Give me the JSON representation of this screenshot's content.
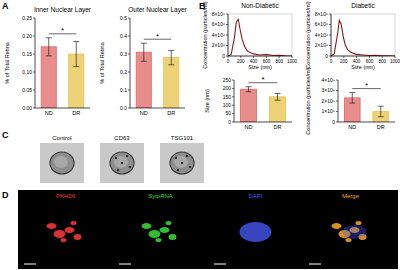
{
  "chart_data": [
    {
      "type": "bar",
      "title": "Inner Nuclear Layer",
      "y_label": "% of Total Retina",
      "categories": [
        "ND",
        "DR"
      ],
      "values": [
        0.17,
        0.15
      ],
      "errors": [
        0.025,
        0.035
      ],
      "colors": [
        "#e06666",
        "#e8c34a"
      ],
      "ylim": [
        0,
        0.25
      ],
      "yticks": [
        {
          "value": 0,
          "label": "0.00"
        },
        {
          "value": 0.05,
          "label": "0.05"
        },
        {
          "value": 0.1,
          "label": "0.10"
        },
        {
          "value": 0.15,
          "label": "0.15"
        },
        {
          "value": 0.2,
          "label": "0.20"
        },
        {
          "value": 0.25,
          "label": "0.25"
        }
      ],
      "annotation": "*"
    },
    {
      "type": "bar",
      "title": "Outer Nuclear Layer",
      "y_label": "% of Total Retina",
      "categories": [
        "ND",
        "DR"
      ],
      "values": [
        0.31,
        0.28
      ],
      "errors": [
        0.05,
        0.04
      ],
      "colors": [
        "#e06666",
        "#e8c34a"
      ],
      "ylim": [
        0,
        0.5
      ],
      "yticks": [
        {
          "value": 0,
          "label": "0.0"
        },
        0.1,
        0.2,
        0.3,
        0.4,
        0.5
      ],
      "annotation": "*"
    },
    {
      "type": "line",
      "title": "Non-Diabetic",
      "x_label": "Size (nm)",
      "y_label": "Concentration (particles/ml)",
      "x": [
        0,
        50,
        100,
        130,
        160,
        190,
        220,
        260,
        300,
        350,
        400,
        500,
        600,
        700,
        800,
        900,
        1000
      ],
      "values": [
        0,
        300000,
        3500000,
        6500000,
        7000000,
        5000000,
        3200000,
        1800000,
        1000000,
        600000,
        400000,
        200000,
        300000,
        100000,
        150000,
        50000,
        0
      ],
      "color": "#8b1a1a",
      "xlim": [
        0,
        1000
      ],
      "xticks": [
        0,
        200,
        400,
        600,
        800,
        1000
      ],
      "ylim": [
        0,
        8000000
      ],
      "yticks": [
        0,
        {
          "value": 2000000,
          "label": "2×10⁶"
        },
        {
          "value": 4000000,
          "label": "4×10⁶"
        },
        {
          "value": 6000000,
          "label": "6×10⁶"
        },
        {
          "value": 8000000,
          "label": "8×10⁶"
        }
      ]
    },
    {
      "type": "line",
      "title": "Diabetic",
      "x_label": "Size (nm)",
      "y_label": "Concentration (particles/ml)",
      "x": [
        0,
        50,
        100,
        130,
        160,
        190,
        220,
        260,
        300,
        350,
        400,
        500,
        600,
        700,
        800,
        900,
        1000
      ],
      "values": [
        0,
        400000,
        4000000,
        6800000,
        6000000,
        3800000,
        2200000,
        1200000,
        800000,
        500000,
        300000,
        200000,
        100000,
        150000,
        50000,
        50000,
        0
      ],
      "color": "#8b1a1a",
      "xlim": [
        0,
        1000
      ],
      "xticks": [
        0,
        200,
        400,
        600,
        800,
        1000
      ],
      "ylim": [
        0,
        8000000
      ],
      "yticks": [
        0,
        {
          "value": 2000000,
          "label": "2×10⁶"
        },
        {
          "value": 4000000,
          "label": "4×10⁶"
        },
        {
          "value": 6000000,
          "label": "6×10⁶"
        },
        {
          "value": 8000000,
          "label": "8×10⁶"
        }
      ]
    },
    {
      "type": "bar",
      "y_label": "Size (nm)",
      "categories": [
        "ND",
        "DR"
      ],
      "values": [
        195,
        150
      ],
      "errors": [
        15,
        20
      ],
      "colors": [
        "#e06666",
        "#e8c34a"
      ],
      "ylim": [
        0,
        250
      ],
      "yticks": [
        0,
        50,
        100,
        150,
        200,
        250
      ],
      "annotation": "*"
    },
    {
      "type": "bar",
      "y_label": "Concentration (particles/ml)",
      "categories": [
        "ND",
        "DR"
      ],
      "values": [
        2300000000,
        1000000000
      ],
      "errors": [
        500000000,
        500000000
      ],
      "colors": [
        "#e06666",
        "#e8c34a"
      ],
      "ylim": [
        0,
        4000000000
      ],
      "yticks": [
        0,
        {
          "value": 1000000000,
          "label": "1×10⁹"
        },
        {
          "value": 2000000000,
          "label": "2×10⁹"
        },
        {
          "value": 3000000000,
          "label": "3×10⁹"
        },
        {
          "value": 4000000000,
          "label": "4×10⁹"
        }
      ],
      "annotation": "*"
    }
  ],
  "panels": {
    "letters": [
      "A",
      "B",
      "C",
      "D"
    ],
    "tem": {
      "titles": [
        "Control",
        "CD63",
        "TSG101"
      ]
    },
    "confocal": {
      "channels": [
        {
          "name": "PKH26",
          "color": "#ff3b3b"
        },
        {
          "name": "SytoRNA",
          "color": "#3cdc3c"
        },
        {
          "name": "DAPI",
          "color": "#4a5cff"
        },
        {
          "name": "Merge",
          "color": "#ffa726"
        }
      ]
    }
  }
}
